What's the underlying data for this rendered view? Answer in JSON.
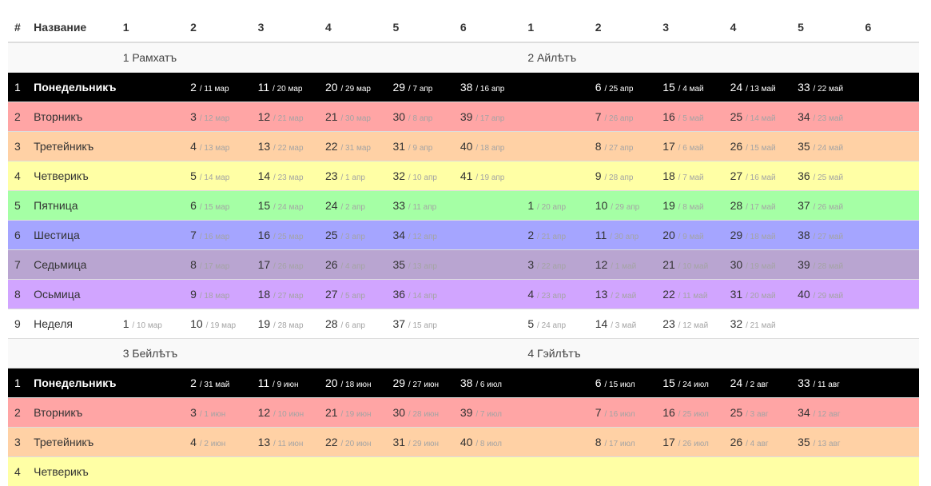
{
  "headers": [
    "#",
    "Название",
    "1",
    "2",
    "3",
    "4",
    "5",
    "6",
    "1",
    "2",
    "3",
    "4",
    "5",
    "6"
  ],
  "blocks": [
    {
      "months": [
        "1 Рамхатъ",
        "2 Айлѣтъ"
      ],
      "rows": [
        {
          "num": "1",
          "name": "Понедельникъ",
          "bg": "#000000",
          "dark": true,
          "cells": [
            null,
            {
              "n": "2",
              "d": "/ 11 мар"
            },
            {
              "n": "11",
              "d": "/ 20 мар"
            },
            {
              "n": "20",
              "d": "/ 29 мар"
            },
            {
              "n": "29",
              "d": "/ 7 апр"
            },
            {
              "n": "38",
              "d": "/ 16 апр"
            },
            null,
            {
              "n": "6",
              "d": "/ 25 апр"
            },
            {
              "n": "15",
              "d": "/ 4 май"
            },
            {
              "n": "24",
              "d": "/ 13 май"
            },
            {
              "n": "33",
              "d": "/ 22 май"
            },
            null
          ]
        },
        {
          "num": "2",
          "name": "Вторникъ",
          "bg": "#ffa5a5",
          "cells": [
            null,
            {
              "n": "3",
              "d": "/ 12 мар"
            },
            {
              "n": "12",
              "d": "/ 21 мар"
            },
            {
              "n": "21",
              "d": "/ 30 мар"
            },
            {
              "n": "30",
              "d": "/ 8 апр"
            },
            {
              "n": "39",
              "d": "/ 17 апр"
            },
            null,
            {
              "n": "7",
              "d": "/ 26 апр"
            },
            {
              "n": "16",
              "d": "/ 5 май"
            },
            {
              "n": "25",
              "d": "/ 14 май"
            },
            {
              "n": "34",
              "d": "/ 23 май"
            },
            null
          ]
        },
        {
          "num": "3",
          "name": "Третейникъ",
          "bg": "#ffd1a5",
          "cells": [
            null,
            {
              "n": "4",
              "d": "/ 13 мар"
            },
            {
              "n": "13",
              "d": "/ 22 мар"
            },
            {
              "n": "22",
              "d": "/ 31 мар"
            },
            {
              "n": "31",
              "d": "/ 9 апр"
            },
            {
              "n": "40",
              "d": "/ 18 апр"
            },
            null,
            {
              "n": "8",
              "d": "/ 27 апр"
            },
            {
              "n": "17",
              "d": "/ 6 май"
            },
            {
              "n": "26",
              "d": "/ 15 май"
            },
            {
              "n": "35",
              "d": "/ 24 май"
            },
            null
          ]
        },
        {
          "num": "4",
          "name": "Четверикъ",
          "bg": "#ffffa5",
          "cells": [
            null,
            {
              "n": "5",
              "d": "/ 14 мар"
            },
            {
              "n": "14",
              "d": "/ 23 мар"
            },
            {
              "n": "23",
              "d": "/ 1 апр"
            },
            {
              "n": "32",
              "d": "/ 10 апр"
            },
            {
              "n": "41",
              "d": "/ 19 апр"
            },
            null,
            {
              "n": "9",
              "d": "/ 28 апр"
            },
            {
              "n": "18",
              "d": "/ 7 май"
            },
            {
              "n": "27",
              "d": "/ 16 май"
            },
            {
              "n": "36",
              "d": "/ 25 май"
            },
            null
          ]
        },
        {
          "num": "5",
          "name": "Пятница",
          "bg": "#a5ffa5",
          "cells": [
            null,
            {
              "n": "6",
              "d": "/ 15 мар"
            },
            {
              "n": "15",
              "d": "/ 24 мар"
            },
            {
              "n": "24",
              "d": "/ 2 апр"
            },
            {
              "n": "33",
              "d": "/ 11 апр"
            },
            null,
            {
              "n": "1",
              "d": "/ 20 апр"
            },
            {
              "n": "10",
              "d": "/ 29 апр"
            },
            {
              "n": "19",
              "d": "/ 8 май"
            },
            {
              "n": "28",
              "d": "/ 17 май"
            },
            {
              "n": "37",
              "d": "/ 26 май"
            },
            null
          ]
        },
        {
          "num": "6",
          "name": "Шестица",
          "bg": "#a5a5ff",
          "cells": [
            null,
            {
              "n": "7",
              "d": "/ 16 мар"
            },
            {
              "n": "16",
              "d": "/ 25 мар"
            },
            {
              "n": "25",
              "d": "/ 3 апр"
            },
            {
              "n": "34",
              "d": "/ 12 апр"
            },
            null,
            {
              "n": "2",
              "d": "/ 21 апр"
            },
            {
              "n": "11",
              "d": "/ 30 апр"
            },
            {
              "n": "20",
              "d": "/ 9 май"
            },
            {
              "n": "29",
              "d": "/ 18 май"
            },
            {
              "n": "38",
              "d": "/ 27 май"
            },
            null
          ]
        },
        {
          "num": "7",
          "name": "Седьмица",
          "bg": "#b9a5d1",
          "cells": [
            null,
            {
              "n": "8",
              "d": "/ 17 мар"
            },
            {
              "n": "17",
              "d": "/ 26 мар"
            },
            {
              "n": "26",
              "d": "/ 4 апр"
            },
            {
              "n": "35",
              "d": "/ 13 апр"
            },
            null,
            {
              "n": "3",
              "d": "/ 22 апр"
            },
            {
              "n": "12",
              "d": "/ 1 май"
            },
            {
              "n": "21",
              "d": "/ 10 май"
            },
            {
              "n": "30",
              "d": "/ 19 май"
            },
            {
              "n": "39",
              "d": "/ 28 май"
            },
            null
          ]
        },
        {
          "num": "8",
          "name": "Осьмица",
          "bg": "#d1a5ff",
          "cells": [
            null,
            {
              "n": "9",
              "d": "/ 18 мар"
            },
            {
              "n": "18",
              "d": "/ 27 мар"
            },
            {
              "n": "27",
              "d": "/ 5 апр"
            },
            {
              "n": "36",
              "d": "/ 14 апр"
            },
            null,
            {
              "n": "4",
              "d": "/ 23 апр"
            },
            {
              "n": "13",
              "d": "/ 2 май"
            },
            {
              "n": "22",
              "d": "/ 11 май"
            },
            {
              "n": "31",
              "d": "/ 20 май"
            },
            {
              "n": "40",
              "d": "/ 29 май"
            },
            null
          ]
        },
        {
          "num": "9",
          "name": "Неделя",
          "bg": "#ffffff",
          "cells": [
            {
              "n": "1",
              "d": "/ 10 мар"
            },
            {
              "n": "10",
              "d": "/ 19 мар"
            },
            {
              "n": "19",
              "d": "/ 28 мар"
            },
            {
              "n": "28",
              "d": "/ 6 апр"
            },
            {
              "n": "37",
              "d": "/ 15 апр"
            },
            null,
            {
              "n": "5",
              "d": "/ 24 апр"
            },
            {
              "n": "14",
              "d": "/ 3 май"
            },
            {
              "n": "23",
              "d": "/ 12 май"
            },
            {
              "n": "32",
              "d": "/ 21 май"
            },
            null,
            null
          ]
        }
      ]
    },
    {
      "months": [
        "3 Бейлѣтъ",
        "4 Гэйлѣтъ"
      ],
      "rows": [
        {
          "num": "1",
          "name": "Понедельникъ",
          "bg": "#000000",
          "dark": true,
          "cells": [
            null,
            {
              "n": "2",
              "d": "/ 31 май"
            },
            {
              "n": "11",
              "d": "/ 9 июн"
            },
            {
              "n": "20",
              "d": "/ 18 июн"
            },
            {
              "n": "29",
              "d": "/ 27 июн"
            },
            {
              "n": "38",
              "d": "/ 6 июл"
            },
            null,
            {
              "n": "6",
              "d": "/ 15 июл"
            },
            {
              "n": "15",
              "d": "/ 24 июл"
            },
            {
              "n": "24",
              "d": "/ 2 авг"
            },
            {
              "n": "33",
              "d": "/ 11 авг"
            },
            null
          ]
        },
        {
          "num": "2",
          "name": "Вторникъ",
          "bg": "#ffa5a5",
          "cells": [
            null,
            {
              "n": "3",
              "d": "/ 1 июн"
            },
            {
              "n": "12",
              "d": "/ 10 июн"
            },
            {
              "n": "21",
              "d": "/ 19 июн"
            },
            {
              "n": "30",
              "d": "/ 28 июн"
            },
            {
              "n": "39",
              "d": "/ 7 июл"
            },
            null,
            {
              "n": "7",
              "d": "/ 16 июл"
            },
            {
              "n": "16",
              "d": "/ 25 июл"
            },
            {
              "n": "25",
              "d": "/ 3 авг"
            },
            {
              "n": "34",
              "d": "/ 12 авг"
            },
            null
          ]
        },
        {
          "num": "3",
          "name": "Третейникъ",
          "bg": "#ffd1a5",
          "cells": [
            null,
            {
              "n": "4",
              "d": "/ 2 июн"
            },
            {
              "n": "13",
              "d": "/ 11 июн"
            },
            {
              "n": "22",
              "d": "/ 20 июн"
            },
            {
              "n": "31",
              "d": "/ 29 июн"
            },
            {
              "n": "40",
              "d": "/ 8 июл"
            },
            null,
            {
              "n": "8",
              "d": "/ 17 июл"
            },
            {
              "n": "17",
              "d": "/ 26 июл"
            },
            {
              "n": "26",
              "d": "/ 4 авг"
            },
            {
              "n": "35",
              "d": "/ 13 авг"
            },
            null
          ]
        },
        {
          "num": "4",
          "name": "Четверикъ",
          "bg": "#ffffa5",
          "cells": [
            null,
            null,
            null,
            null,
            null,
            null,
            null,
            null,
            null,
            null,
            null,
            null
          ]
        }
      ]
    }
  ]
}
